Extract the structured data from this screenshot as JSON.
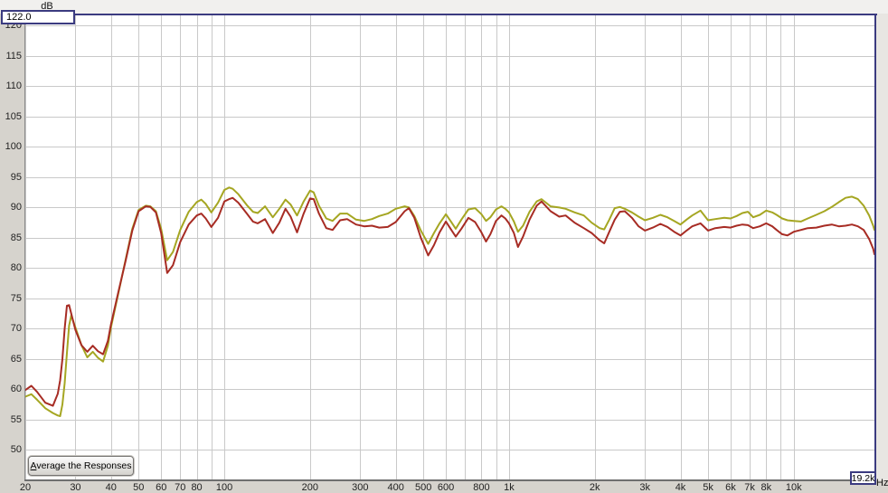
{
  "button": {
    "label": "Average the Responses"
  },
  "chart_data": {
    "type": "line",
    "title": "",
    "grid": true,
    "grid_color": "#c9c9c9",
    "legend_position": "none",
    "x_scale": "log",
    "x_axis": {
      "unit": "Hz",
      "min": 20,
      "max": 19200,
      "right_limit_display": "19.2k",
      "ticks": [
        {
          "f": 20,
          "label": "20"
        },
        {
          "f": 30,
          "label": "30"
        },
        {
          "f": 40,
          "label": "40"
        },
        {
          "f": 50,
          "label": "50"
        },
        {
          "f": 60,
          "label": "60"
        },
        {
          "f": 70,
          "label": "70"
        },
        {
          "f": 80,
          "label": "80"
        },
        {
          "f": 90,
          "label": ""
        },
        {
          "f": 100,
          "label": "100"
        },
        {
          "f": 200,
          "label": "200"
        },
        {
          "f": 300,
          "label": "300"
        },
        {
          "f": 400,
          "label": "400"
        },
        {
          "f": 500,
          "label": "500"
        },
        {
          "f": 600,
          "label": "600"
        },
        {
          "f": 700,
          "label": ""
        },
        {
          "f": 800,
          "label": "800"
        },
        {
          "f": 900,
          "label": ""
        },
        {
          "f": 1000,
          "label": "1k"
        },
        {
          "f": 2000,
          "label": "2k"
        },
        {
          "f": 3000,
          "label": "3k"
        },
        {
          "f": 4000,
          "label": "4k"
        },
        {
          "f": 5000,
          "label": "5k"
        },
        {
          "f": 6000,
          "label": "6k"
        },
        {
          "f": 7000,
          "label": "7k"
        },
        {
          "f": 8000,
          "label": "8k"
        },
        {
          "f": 9000,
          "label": ""
        },
        {
          "f": 10000,
          "label": "10k"
        }
      ]
    },
    "y_axis": {
      "unit": "dB",
      "min": 45,
      "max": 122,
      "top_limit_display": "122.0",
      "ticks": [
        120,
        115,
        110,
        105,
        100,
        95,
        90,
        85,
        80,
        75,
        70,
        65,
        60,
        55,
        50
      ]
    },
    "frequencies": [
      20,
      21,
      22,
      23.5,
      25,
      26,
      26.5,
      27,
      27.5,
      28,
      28.5,
      29,
      30,
      31.5,
      33,
      34.5,
      36,
      37.5,
      39,
      40,
      42.5,
      45,
      47.5,
      50,
      53,
      55,
      57.5,
      60,
      63,
      66,
      70,
      75,
      80,
      83,
      86,
      90,
      95,
      100,
      104,
      107,
      112,
      120,
      126,
      131,
      139,
      148,
      156,
      164,
      171,
      180,
      190,
      200,
      206,
      215,
      228,
      240,
      255,
      270,
      290,
      310,
      330,
      350,
      375,
      400,
      430,
      445,
      465,
      490,
      520,
      545,
      570,
      600,
      625,
      650,
      680,
      720,
      760,
      800,
      830,
      860,
      900,
      940,
      970,
      1000,
      1040,
      1075,
      1120,
      1180,
      1250,
      1300,
      1400,
      1500,
      1580,
      1700,
      1830,
      1950,
      2080,
      2160,
      2250,
      2350,
      2450,
      2550,
      2700,
      2850,
      3000,
      3200,
      3400,
      3600,
      3800,
      4000,
      4200,
      4400,
      4700,
      5000,
      5300,
      5700,
      6000,
      6300,
      6600,
      6900,
      7200,
      7600,
      8000,
      8400,
      8700,
      9100,
      9500,
      10000,
      10600,
      11200,
      12000,
      12800,
      13600,
      14400,
      15200,
      16000,
      16800,
      17600,
      18400,
      19000,
      19200
    ],
    "series": [
      {
        "name": "response-olive",
        "color": "#a5a622",
        "db": [
          58.8,
          59.2,
          58.3,
          56.9,
          56.1,
          55.7,
          55.6,
          57.5,
          61.0,
          66.0,
          70.5,
          72.2,
          70.2,
          67.3,
          65.3,
          66.2,
          65.2,
          64.6,
          67.2,
          70.3,
          76.0,
          81.4,
          86.5,
          89.6,
          90.3,
          90.2,
          89.4,
          86.5,
          81.3,
          82.7,
          86.3,
          89.3,
          90.9,
          91.3,
          90.6,
          89.2,
          90.8,
          92.9,
          93.3,
          93.1,
          92.2,
          90.4,
          89.3,
          89.1,
          90.2,
          88.4,
          89.8,
          91.3,
          90.5,
          88.7,
          91.0,
          92.8,
          92.5,
          90.3,
          88.2,
          87.8,
          89.0,
          89.0,
          88.0,
          87.8,
          88.1,
          88.6,
          89.0,
          89.8,
          90.2,
          90.0,
          88.6,
          86.2,
          84.0,
          85.8,
          87.4,
          88.9,
          87.7,
          86.5,
          88.0,
          89.7,
          89.9,
          88.9,
          87.8,
          88.4,
          89.7,
          90.2,
          89.8,
          89.2,
          87.7,
          86.0,
          87.0,
          89.3,
          91.0,
          91.4,
          90.2,
          90.0,
          89.8,
          89.2,
          88.7,
          87.5,
          86.6,
          86.4,
          88.0,
          89.9,
          90.1,
          89.8,
          89.2,
          88.5,
          87.9,
          88.3,
          88.8,
          88.4,
          87.8,
          87.2,
          88.0,
          88.7,
          89.5,
          87.9,
          88.1,
          88.3,
          88.2,
          88.6,
          89.1,
          89.3,
          88.4,
          88.8,
          89.5,
          89.2,
          88.8,
          88.2,
          87.9,
          87.8,
          87.7,
          88.2,
          88.8,
          89.4,
          90.1,
          90.9,
          91.6,
          91.8,
          91.4,
          90.3,
          88.7,
          87.0,
          86.3
        ]
      },
      {
        "name": "response-red",
        "color": "#a72c24",
        "db": [
          59.9,
          60.6,
          59.6,
          57.8,
          57.3,
          59.3,
          61.5,
          65.0,
          70.0,
          73.8,
          73.9,
          72.5,
          69.8,
          67.3,
          66.2,
          67.2,
          66.3,
          65.8,
          68.0,
          70.8,
          76.2,
          81.2,
          86.2,
          89.4,
          90.2,
          90.1,
          89.2,
          85.8,
          79.2,
          80.5,
          84.3,
          87.2,
          88.7,
          89.0,
          88.2,
          86.8,
          88.3,
          91.0,
          91.4,
          91.6,
          90.8,
          89.0,
          87.7,
          87.4,
          88.1,
          85.8,
          87.5,
          89.8,
          88.5,
          85.9,
          89.0,
          91.5,
          91.4,
          89.0,
          86.6,
          86.3,
          87.9,
          88.1,
          87.2,
          86.9,
          87.0,
          86.7,
          86.8,
          87.6,
          89.4,
          89.9,
          88.3,
          85.0,
          82.1,
          83.8,
          85.9,
          87.7,
          86.4,
          85.2,
          86.5,
          88.3,
          87.6,
          85.9,
          84.4,
          85.6,
          87.8,
          88.7,
          88.2,
          87.4,
          85.8,
          83.5,
          85.2,
          88.0,
          90.3,
          91.0,
          89.4,
          88.5,
          88.7,
          87.5,
          86.6,
          85.8,
          84.6,
          84.1,
          86.0,
          88.0,
          89.3,
          89.4,
          88.3,
          86.9,
          86.2,
          86.7,
          87.3,
          86.8,
          86.0,
          85.4,
          86.2,
          86.9,
          87.4,
          86.2,
          86.6,
          86.8,
          86.7,
          87.0,
          87.2,
          87.1,
          86.6,
          86.9,
          87.4,
          86.9,
          86.3,
          85.6,
          85.4,
          86.0,
          86.3,
          86.6,
          86.7,
          87.0,
          87.2,
          86.9,
          87.0,
          87.2,
          86.9,
          86.3,
          84.8,
          83.2,
          82.3
        ]
      }
    ]
  }
}
